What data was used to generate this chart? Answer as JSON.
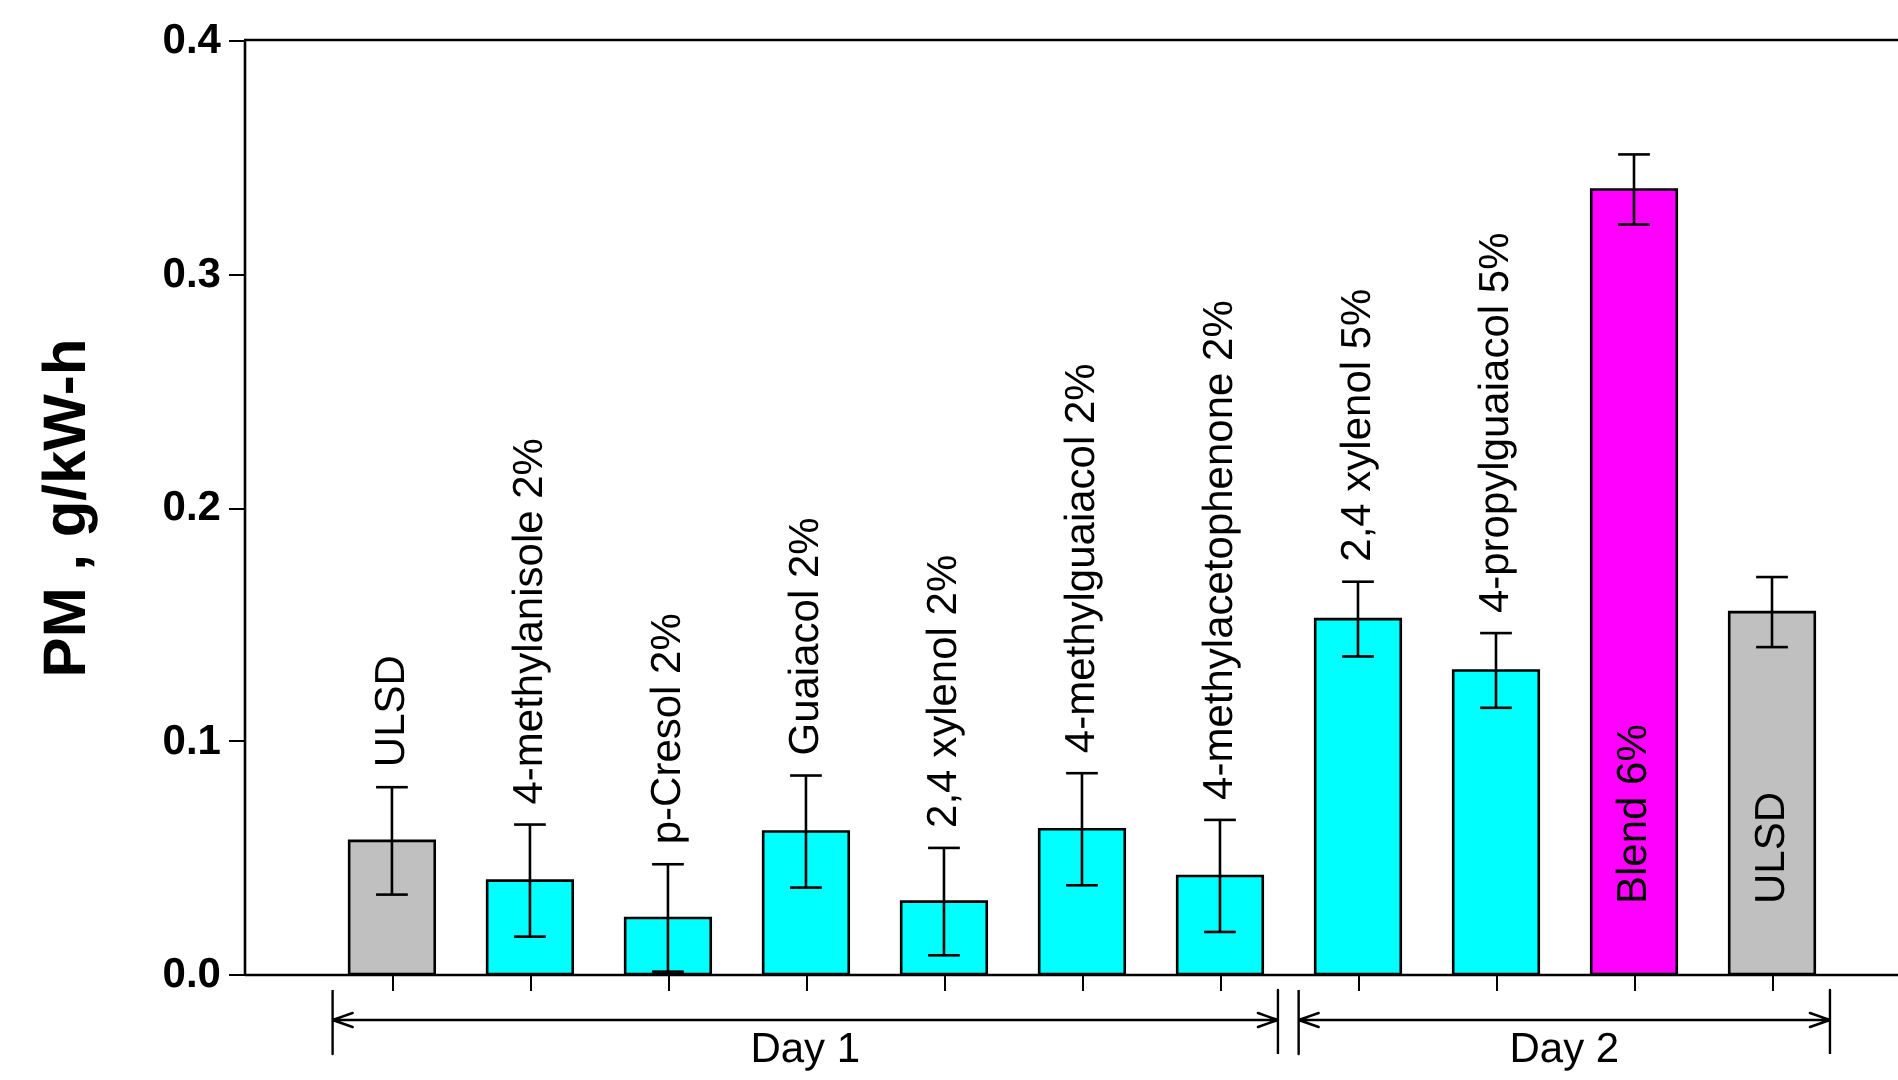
{
  "chart_data": {
    "type": "bar",
    "ylabel": "PM , g/kW-h",
    "categories": [
      "ULSD",
      "4-methylanisole 2%",
      "p-Cresol 2%",
      "Guaiacol 2%",
      "2,4 xylenol 2%",
      "4-methylguaiacol 2%",
      "4-methylacetophenone 2%",
      "2,4 xylenol 5%",
      "4-propylguaiacol 5%",
      "Blend 6%",
      "ULSD"
    ],
    "series": [
      {
        "name": "Day 1",
        "colors": [
          "#c0c0c0",
          "#00ffff",
          "#00ffff",
          "#00ffff",
          "#00ffff",
          "#00ffff",
          "#00ffff",
          null,
          null,
          null,
          null
        ],
        "values": [
          0.057,
          0.04,
          0.024,
          0.061,
          0.031,
          0.062,
          0.042,
          null,
          null,
          null,
          null
        ],
        "errors": [
          0.023,
          0.024,
          0.023,
          0.024,
          0.023,
          0.024,
          0.024,
          null,
          null,
          null,
          null
        ]
      },
      {
        "name": "Day 2",
        "colors": [
          null,
          null,
          null,
          null,
          null,
          null,
          null,
          "#00ffff",
          "#00ffff",
          "#ff00ff",
          "#c0c0c0"
        ],
        "values": [
          null,
          null,
          null,
          null,
          null,
          null,
          null,
          0.152,
          0.13,
          0.336,
          0.155
        ],
        "errors": [
          null,
          null,
          null,
          null,
          null,
          null,
          null,
          0.016,
          0.016,
          0.015,
          0.015
        ]
      }
    ],
    "ylim": [
      0,
      0.4
    ],
    "yticks": [
      {
        "value": 0,
        "label": "0.0"
      },
      0.1,
      0.2,
      0.3,
      0.4
    ],
    "tick_labels": "y",
    "legend": "bottom"
  }
}
